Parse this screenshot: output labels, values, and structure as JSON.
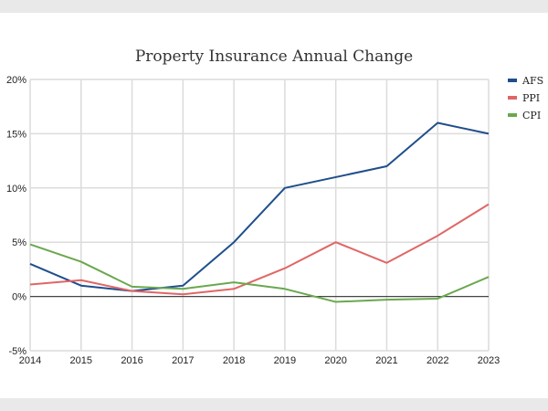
{
  "chart_data": {
    "type": "line",
    "title": "Property Insurance Annual Change",
    "xlabel": "",
    "ylabel": "",
    "x": [
      2014,
      2015,
      2016,
      2017,
      2018,
      2019,
      2020,
      2021,
      2022,
      2023
    ],
    "ylim": [
      -5,
      20
    ],
    "yticks": [
      -5,
      0,
      5,
      10,
      15,
      20
    ],
    "ytick_labels": [
      "-5%",
      "0%",
      "5%",
      "10%",
      "15%",
      "20%"
    ],
    "grid": true,
    "legend_position": "right",
    "series": [
      {
        "name": "AFS",
        "color": "#1f4e8c",
        "values": [
          3,
          1,
          0.5,
          1,
          5,
          10,
          11,
          12,
          16,
          15
        ]
      },
      {
        "name": "PPI",
        "color": "#e06666",
        "values": [
          1.1,
          1.5,
          0.5,
          0.2,
          0.7,
          2.6,
          5,
          3.1,
          5.6,
          8.5
        ]
      },
      {
        "name": "CPI",
        "color": "#6aa84f",
        "values": [
          4.8,
          3.2,
          0.9,
          0.7,
          1.3,
          0.7,
          -0.5,
          -0.3,
          -0.2,
          1.8
        ]
      }
    ]
  }
}
